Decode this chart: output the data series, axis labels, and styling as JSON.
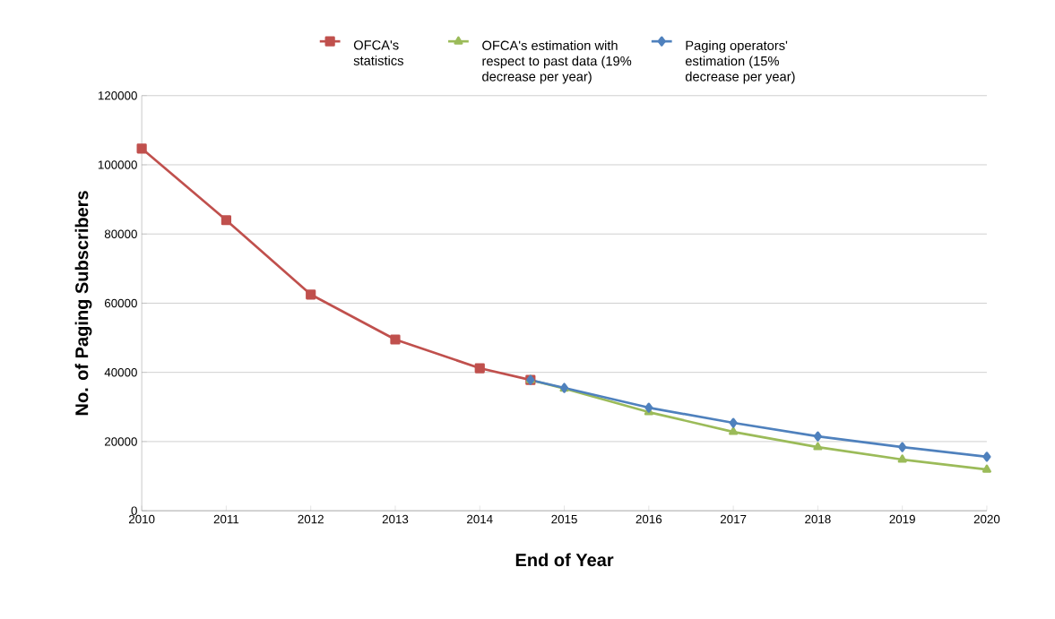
{
  "chart_data": {
    "type": "line",
    "xlabel": "End of Year",
    "ylabel": "No. of Paging Subscribers",
    "xlim": [
      2010,
      2020
    ],
    "xticks": [
      2010,
      2011,
      2012,
      2013,
      2014,
      2015,
      2016,
      2017,
      2018,
      2019,
      2020
    ],
    "ylim": [
      0,
      120000
    ],
    "yticks": [
      0,
      20000,
      40000,
      60000,
      80000,
      100000,
      120000
    ],
    "grid": "y",
    "legend": "top",
    "line_style": "solid",
    "series": [
      {
        "name": "OFCA's statistics",
        "color": "#c0504d",
        "marker": "square",
        "x": [
          2010,
          2011,
          2012,
          2013,
          2014,
          2014.6
        ],
        "values": [
          104700,
          84000,
          62500,
          49500,
          41200,
          37800
        ]
      },
      {
        "name": "OFCA's estimation with respect to past data (19% decrease per year)",
        "color": "#9bbb59",
        "marker": "triangle",
        "x": [
          2014.6,
          2015,
          2016,
          2017,
          2018,
          2019,
          2020
        ],
        "values": [
          37800,
          35300,
          28500,
          22800,
          18400,
          14800,
          11900
        ]
      },
      {
        "name": "Paging operators' estimation (15% decrease per year)",
        "color": "#4f81bd",
        "marker": "diamond",
        "x": [
          2014.6,
          2015,
          2016,
          2017,
          2018,
          2019,
          2020
        ],
        "values": [
          37800,
          35500,
          29800,
          25400,
          21500,
          18400,
          15600
        ]
      }
    ]
  }
}
